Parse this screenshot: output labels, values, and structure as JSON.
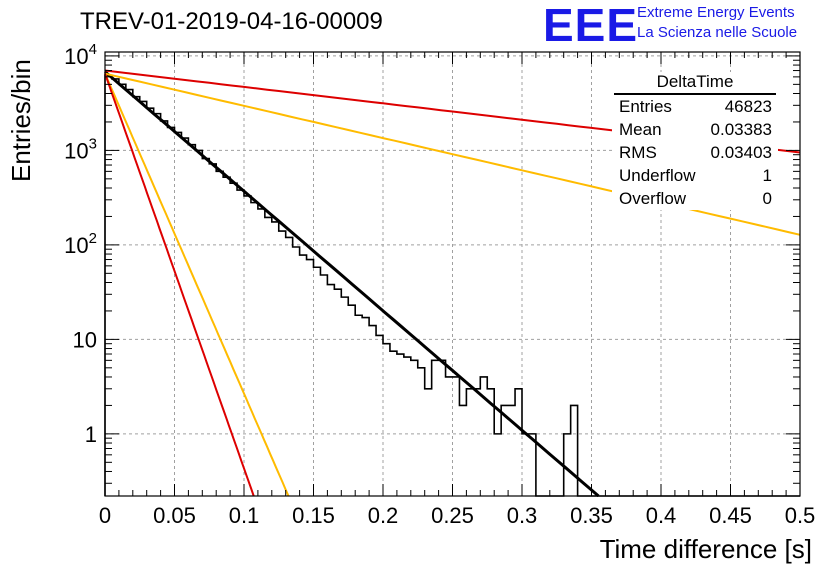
{
  "title": "TREV-01-2019-04-16-00009",
  "logo": {
    "mark": "EEE",
    "line1": "Extreme Energy Events",
    "line2": "La Scienza nelle Scuole",
    "color": "#1a1ae6"
  },
  "stats": {
    "name": "DeltaTime",
    "rows": [
      {
        "label": "Entries",
        "value": "46823"
      },
      {
        "label": "Mean",
        "value": "0.03383"
      },
      {
        "label": "RMS",
        "value": "0.03403"
      },
      {
        "label": "Underflow",
        "value": "1"
      },
      {
        "label": "Overflow",
        "value": "0"
      }
    ]
  },
  "chart_data": {
    "type": "line",
    "histogram_type": "step",
    "xlabel": "Time difference [s]",
    "ylabel": "Entries/bin",
    "xlim": [
      0,
      0.5
    ],
    "ylim": [
      0.22,
      11000
    ],
    "yscale": "log",
    "grid": true,
    "x_ticks": [
      "0",
      "0.05",
      "0.1",
      "0.15",
      "0.2",
      "0.25",
      "0.3",
      "0.35",
      "0.4",
      "0.45",
      "0.5"
    ],
    "y_ticks": [
      {
        "value": 1,
        "label": "1"
      },
      {
        "value": 10,
        "label": "10"
      },
      {
        "value": 100,
        "label": "10^2"
      },
      {
        "value": 1000,
        "label": "10^3"
      },
      {
        "value": 10000,
        "label": "10^4"
      }
    ],
    "histogram": {
      "bin_width": 0.005,
      "x_start": 0,
      "values": [
        6200,
        5700,
        5000,
        4400,
        3700,
        3300,
        2800,
        2450,
        2050,
        1750,
        1550,
        1350,
        1150,
        1000,
        820,
        720,
        600,
        520,
        450,
        380,
        330,
        280,
        240,
        195,
        175,
        140,
        120,
        95,
        78,
        70,
        58,
        48,
        38,
        34,
        28,
        23,
        18,
        17,
        14,
        11,
        9,
        7.5,
        7,
        6.5,
        6,
        5,
        3,
        6,
        6,
        4,
        4,
        2,
        3,
        3,
        4,
        3,
        1,
        2,
        2,
        3,
        1,
        1,
        0,
        0,
        0,
        0,
        1,
        2,
        0,
        0,
        0,
        0,
        0,
        0,
        0,
        0,
        0,
        0,
        0,
        0,
        0,
        0,
        0,
        0,
        0,
        0,
        0,
        0,
        0,
        0,
        0,
        0,
        0,
        0,
        0,
        0,
        0,
        0,
        0,
        0
      ]
    },
    "series": [
      {
        "name": "",
        "color": "#000000",
        "x": [
          0,
          0.355
        ],
        "y": [
          6800,
          0.22
        ]
      },
      {
        "name": "",
        "color": "#dd0000",
        "x": [
          0,
          0.5
        ],
        "y": [
          7000,
          950
        ]
      },
      {
        "name": "",
        "color": "#ffbb00",
        "x": [
          0,
          0.5
        ],
        "y": [
          6500,
          128
        ]
      },
      {
        "name": "",
        "color": "#ffbb00",
        "x": [
          0,
          0.132
        ],
        "y": [
          6500,
          0.22
        ]
      },
      {
        "name": "",
        "color": "#dd0000",
        "x": [
          0,
          0.107
        ],
        "y": [
          6500,
          0.22
        ]
      }
    ]
  }
}
